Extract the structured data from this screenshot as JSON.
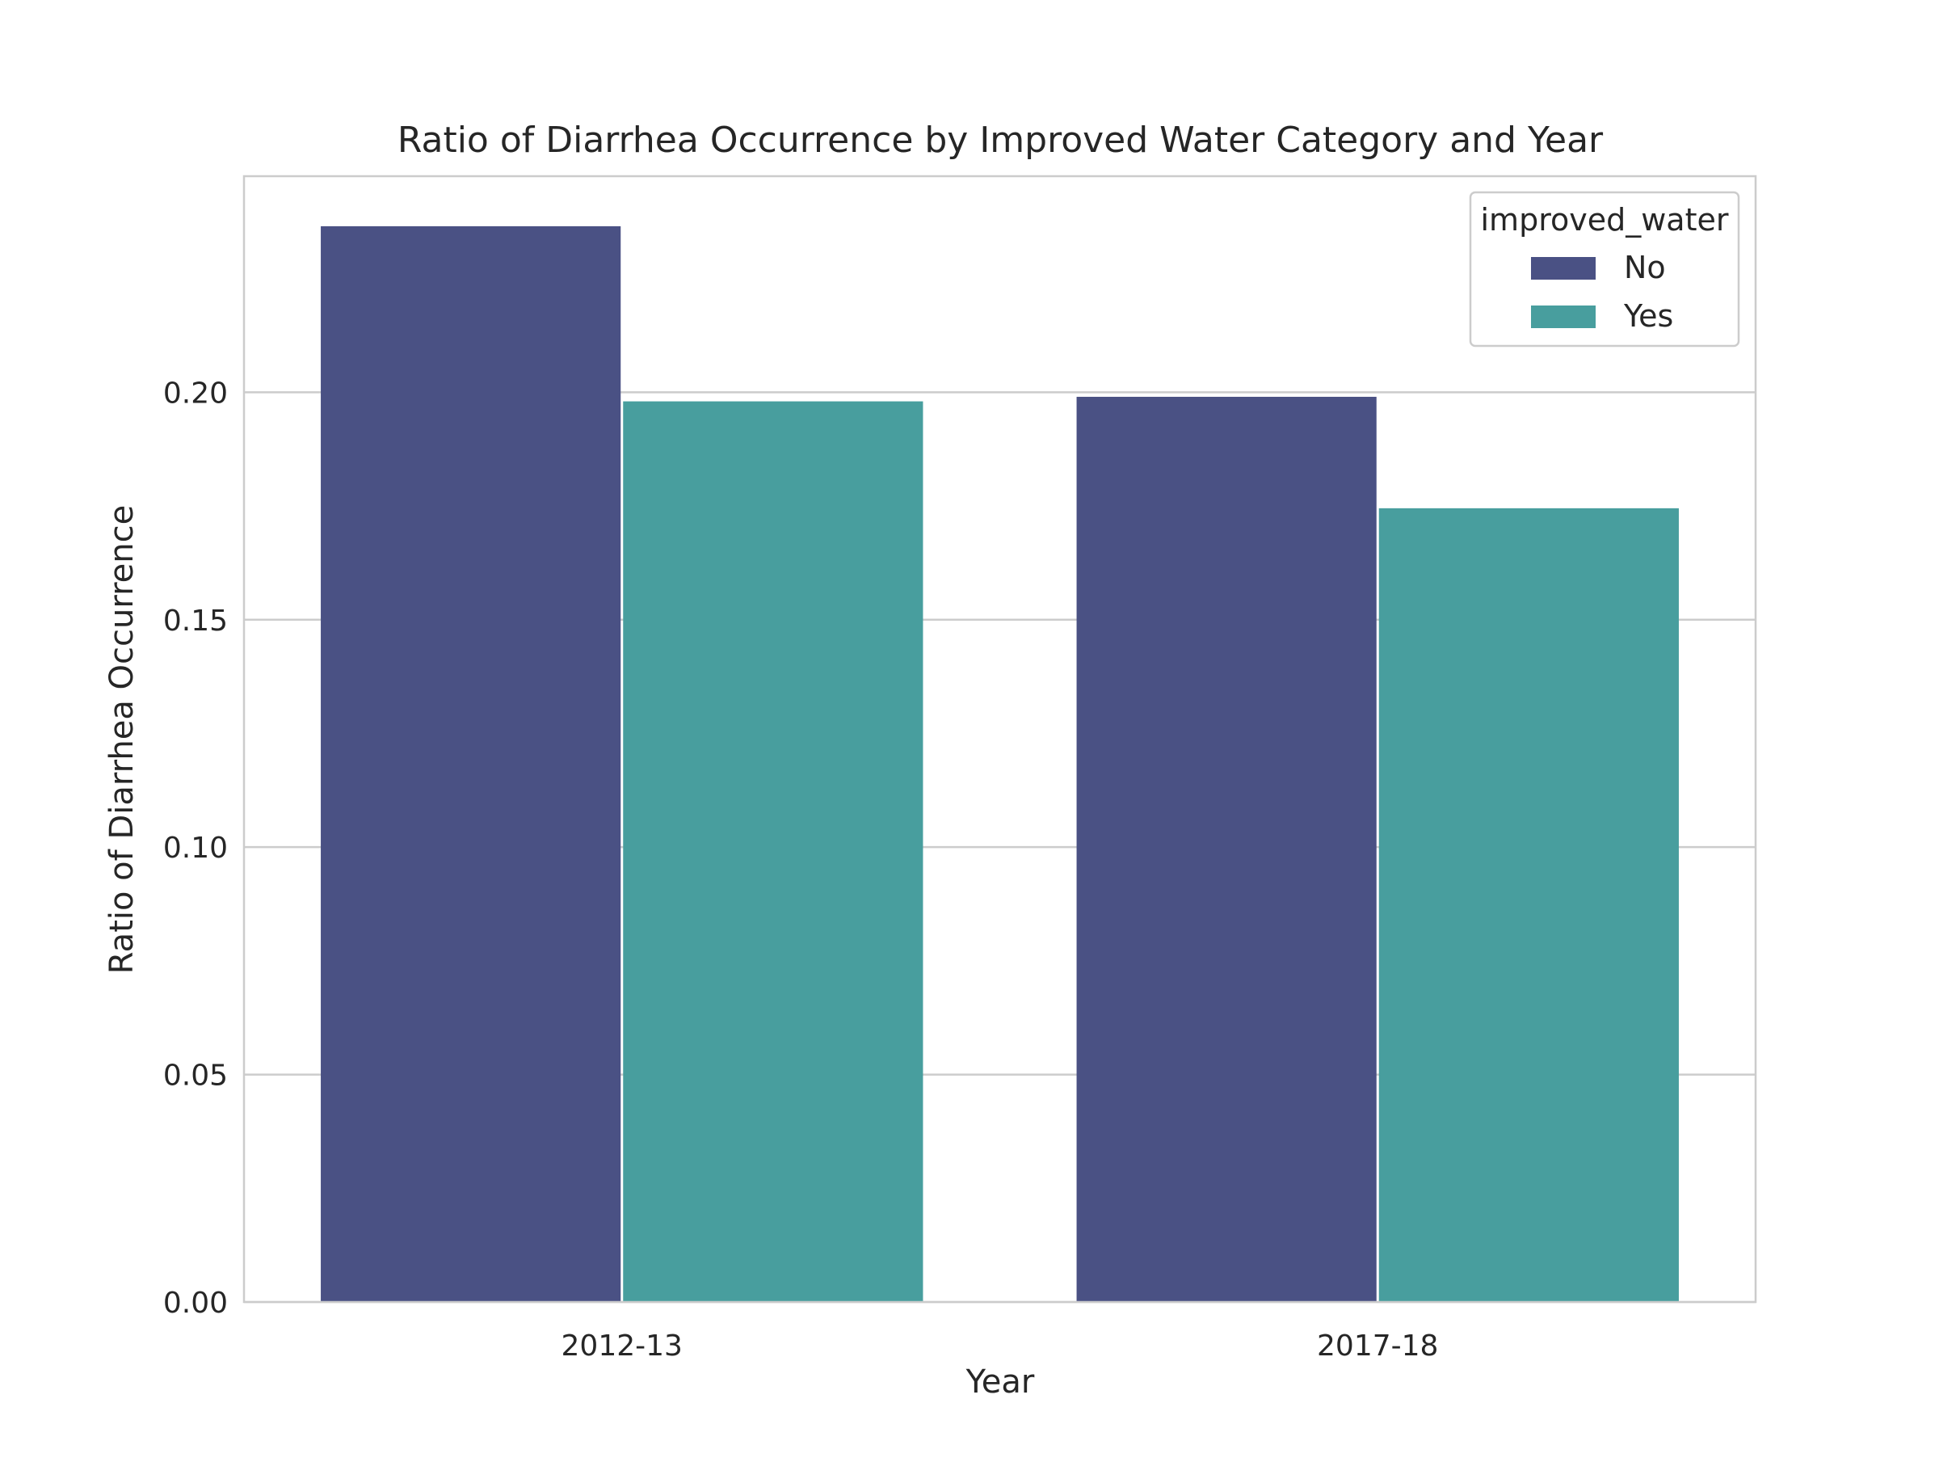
{
  "chart_data": {
    "type": "bar",
    "title": "Ratio of Diarrhea Occurrence by Improved Water Category and Year",
    "xlabel": "Year",
    "ylabel": "Ratio of Diarrhea Occurrence",
    "categories": [
      "2012-13",
      "2017-18"
    ],
    "series": [
      {
        "name": "No",
        "values": [
          0.2365,
          0.199
        ],
        "color": "#4a5184"
      },
      {
        "name": "Yes",
        "values": [
          0.198,
          0.1745
        ],
        "color": "#489e9e"
      }
    ],
    "ylim": [
      0,
      0.2475
    ],
    "yticks": [
      0.0,
      0.05,
      0.1,
      0.15,
      0.2
    ],
    "ytick_labels": [
      "0.00",
      "0.05",
      "0.10",
      "0.15",
      "0.20"
    ],
    "grid": true,
    "legend": {
      "title": "improved_water",
      "placement": "top-right"
    }
  }
}
